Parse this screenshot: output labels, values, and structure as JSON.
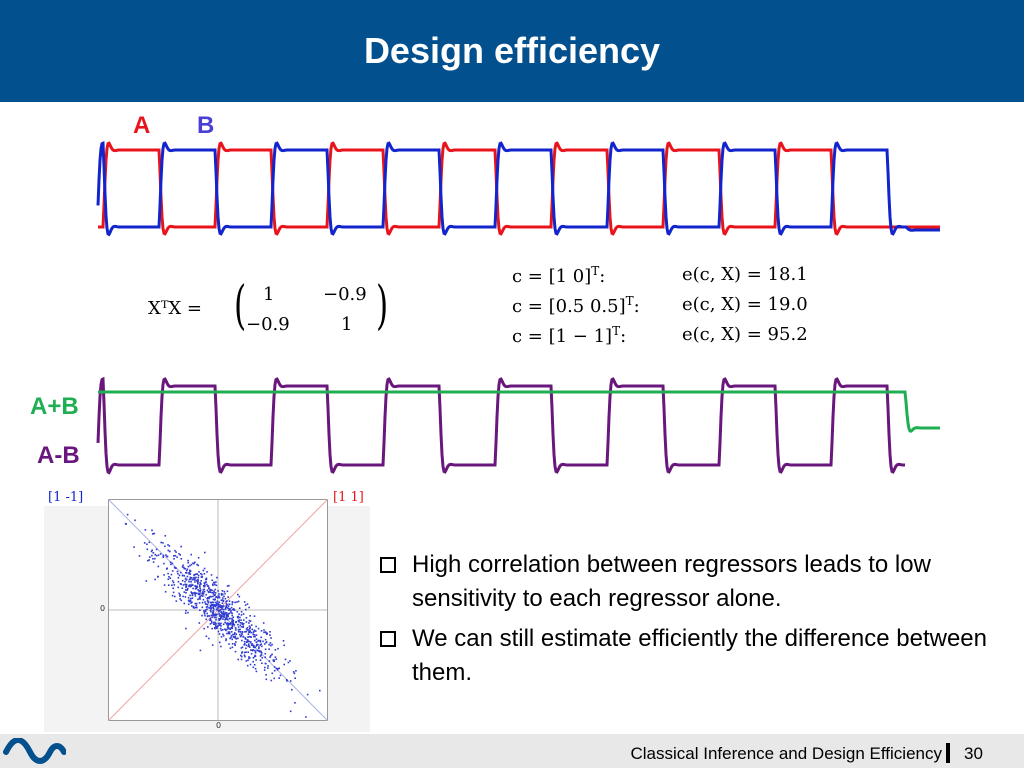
{
  "title": "Design efficiency",
  "colors": {
    "header": "#03508f",
    "A": "#e8141b",
    "B": "#1225cc",
    "sum": "#1fae52",
    "diff": "#6a177d",
    "scatter": "#2f3bd0",
    "footer": "#e8e8e8"
  },
  "legend": {
    "a": "A",
    "b": "B",
    "sum": "A+B",
    "diff": "A-B"
  },
  "matrix": {
    "lhs": "XᵀX =",
    "r1c1": "1",
    "r1c2": "−0.9",
    "r2c1": "−0.9",
    "r2c2": "1"
  },
  "efficiency": {
    "rows": [
      {
        "contrast": "c = [1 0]",
        "result": "e(c, X) = 18.1"
      },
      {
        "contrast": "c = [0.5 0.5]",
        "result": "e(c, X) = 19.0"
      },
      {
        "contrast": "c = [1 − 1]",
        "result": "e(c, X) = 95.2"
      }
    ],
    "transpose": "T",
    "colon": ":"
  },
  "scatter": {
    "label_neg": "[1 -1]",
    "label_pos": "[1 1]",
    "tick_x0": "0",
    "tick_y0": "0",
    "correlation": -0.9,
    "points": 900
  },
  "bullets": [
    "High correlation between regressors leads to low sensitivity to each regressor alone.",
    "We can still estimate efficiently the difference between them."
  ],
  "footer": {
    "text": "Classical Inference and Design Efficiency",
    "page": "30"
  },
  "icons": {
    "logo": "wave-logo-icon",
    "bullet": "checkbox-bullet-icon"
  }
}
